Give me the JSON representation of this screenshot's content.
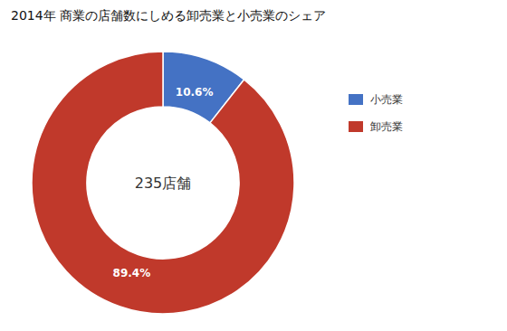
{
  "chart_data": {
    "type": "donut",
    "title": "2014年 商業の店舗数にしめる卸売業と小売業のシェア",
    "categories": [
      "小売業",
      "卸売業"
    ],
    "values": [
      10.6,
      89.4
    ],
    "value_labels": [
      "10.6%",
      "89.4%"
    ],
    "colors": [
      "#4472c4",
      "#c0392b"
    ],
    "data_labels": true,
    "annotations": [
      "235店舗"
    ],
    "legend": "right"
  }
}
